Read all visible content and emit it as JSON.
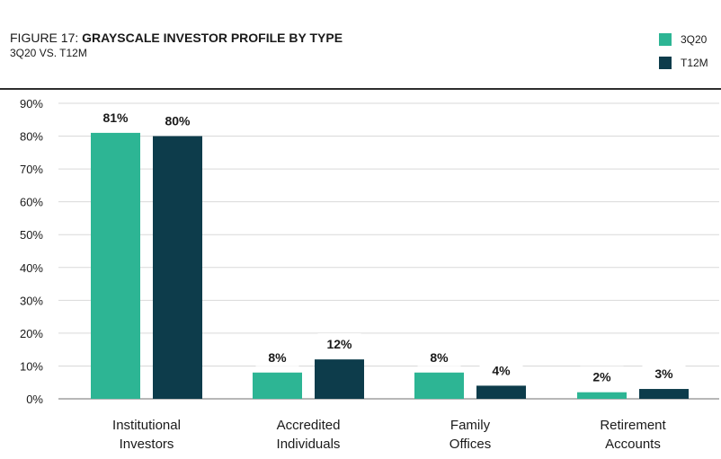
{
  "title": {
    "prefix": "FIGURE 17: ",
    "main": "GRAYSCALE INVESTOR PROFILE BY TYPE",
    "subtitle": "3Q20 VS. T12M"
  },
  "colors": {
    "series_3q20": "#2db594",
    "series_t12m": "#0d3c4b",
    "grid": "#d9d9d9",
    "axis": "#8c8c8c"
  },
  "chart_data": {
    "type": "bar",
    "title": "FIGURE 17: GRAYSCALE INVESTOR PROFILE BY TYPE",
    "subtitle": "3Q20 VS. T12M",
    "categories": [
      [
        "Institutional",
        "Investors"
      ],
      [
        "Accredited",
        "Individuals"
      ],
      [
        "Family",
        "Offices"
      ],
      [
        "Retirement",
        "Accounts"
      ]
    ],
    "series": [
      {
        "name": "3Q20",
        "values": [
          81,
          8,
          8,
          2
        ],
        "labels": [
          "81%",
          "8%",
          "8%",
          "2%"
        ]
      },
      {
        "name": "T12M",
        "values": [
          80,
          12,
          4,
          3
        ],
        "labels": [
          "80%",
          "12%",
          "4%",
          "3%"
        ]
      }
    ],
    "ylim": [
      0,
      90
    ],
    "yticks": [
      "0%",
      "10%",
      "20%",
      "30%",
      "40%",
      "50%",
      "60%",
      "70%",
      "80%",
      "90%"
    ],
    "grid": true,
    "legend_position": "top-right",
    "xlabel": "",
    "ylabel": ""
  }
}
